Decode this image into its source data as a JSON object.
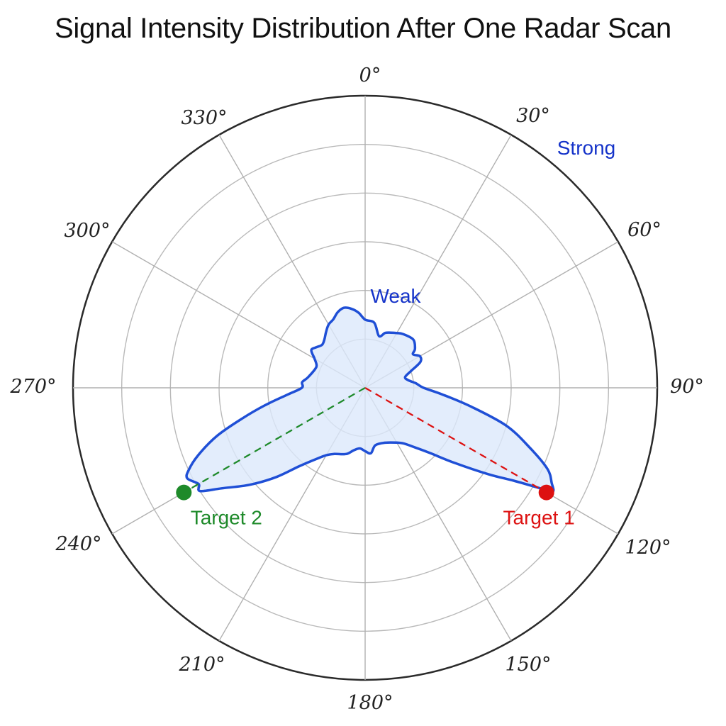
{
  "title": "Signal Intensity Distribution After One Radar Scan",
  "chart_data": {
    "type": "polar-area",
    "title": "Signal Intensity Distribution After One Radar Scan",
    "angular_axis": {
      "direction": "clockwise",
      "zero": "top",
      "ticks": [
        0,
        30,
        60,
        90,
        120,
        150,
        180,
        210,
        240,
        270,
        300,
        330
      ],
      "tick_labels": [
        "0°",
        "30°",
        "60°",
        "90°",
        "120°",
        "150°",
        "180°",
        "210°",
        "240°",
        "270°",
        "300°",
        "330°"
      ]
    },
    "radial_axis": {
      "range": [
        0,
        6
      ],
      "rings": 6,
      "tick_labels_shown": false
    },
    "grid": true,
    "series": [
      {
        "fill": "#dce8fb",
        "stroke": "#1f4fd6",
        "points": [
          [
            0,
            1.4
          ],
          [
            8,
            1.35
          ],
          [
            15,
            1.1
          ],
          [
            20,
            1.2
          ],
          [
            25,
            1.25
          ],
          [
            30,
            1.3
          ],
          [
            35,
            1.35
          ],
          [
            45,
            1.4
          ],
          [
            52,
            1.3
          ],
          [
            55,
            1.2
          ],
          [
            60,
            1.3
          ],
          [
            65,
            1.25
          ],
          [
            70,
            1.0
          ],
          [
            75,
            0.85
          ],
          [
            80,
            0.9
          ],
          [
            85,
            1.05
          ],
          [
            90,
            1.2
          ],
          [
            95,
            1.6
          ],
          [
            100,
            2.2
          ],
          [
            105,
            3.0
          ],
          [
            110,
            3.6
          ],
          [
            114,
            4.1
          ],
          [
            117,
            4.3
          ],
          [
            119,
            4.4
          ],
          [
            120,
            4.1
          ],
          [
            122,
            3.6
          ],
          [
            125,
            3.1
          ],
          [
            130,
            2.4
          ],
          [
            135,
            1.9
          ],
          [
            140,
            1.6
          ],
          [
            145,
            1.4
          ],
          [
            150,
            1.3
          ],
          [
            160,
            1.2
          ],
          [
            170,
            1.2
          ],
          [
            175,
            1.35
          ],
          [
            180,
            1.3
          ],
          [
            185,
            1.25
          ],
          [
            190,
            1.3
          ],
          [
            195,
            1.4
          ],
          [
            200,
            1.45
          ],
          [
            205,
            1.5
          ],
          [
            210,
            1.6
          ],
          [
            215,
            1.8
          ],
          [
            220,
            2.1
          ],
          [
            225,
            2.6
          ],
          [
            230,
            3.1
          ],
          [
            235,
            3.6
          ],
          [
            238,
            4.0
          ],
          [
            240,
            3.95
          ],
          [
            243,
            4.1
          ],
          [
            245,
            4.0
          ],
          [
            248,
            3.7
          ],
          [
            252,
            3.2
          ],
          [
            256,
            2.6
          ],
          [
            260,
            2.1
          ],
          [
            265,
            1.6
          ],
          [
            270,
            1.3
          ],
          [
            275,
            1.3
          ],
          [
            280,
            1.2
          ],
          [
            290,
            1.1
          ],
          [
            295,
            1.1
          ],
          [
            300,
            1.2
          ],
          [
            305,
            1.35
          ],
          [
            310,
            1.3
          ],
          [
            315,
            1.25
          ],
          [
            320,
            1.3
          ],
          [
            325,
            1.4
          ],
          [
            330,
            1.5
          ],
          [
            335,
            1.55
          ],
          [
            340,
            1.65
          ],
          [
            345,
            1.7
          ],
          [
            350,
            1.65
          ],
          [
            355,
            1.55
          ],
          [
            360,
            1.4
          ]
        ]
      }
    ],
    "targets": [
      {
        "label": "Target 1",
        "angle": 120,
        "r": 4.3,
        "color": "#dd1111"
      },
      {
        "label": "Target 2",
        "angle": 240,
        "r": 4.3,
        "color": "#1e8a2a"
      }
    ],
    "annotations": [
      {
        "text": "Strong",
        "color": "#1533c9"
      },
      {
        "text": "Weak",
        "color": "#1533c9"
      }
    ]
  }
}
